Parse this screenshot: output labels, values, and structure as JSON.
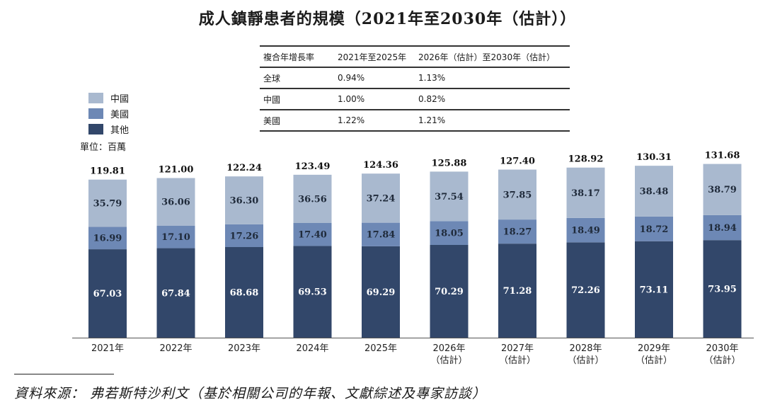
{
  "title": "成人鎮靜患者的規模（2021年至2030年（估計））",
  "cagr_table": {
    "headers": [
      "複合年增長率",
      "2021年至2025年",
      "2026年（估計）至2030年（估計）"
    ],
    "rows": [
      [
        "全球",
        "0.94%",
        "1.13%"
      ],
      [
        "中國",
        "1.00%",
        "0.82%"
      ],
      [
        "美國",
        "1.22%",
        "1.21%"
      ]
    ]
  },
  "unit_label": "單位：百萬",
  "source_text": "資料來源：  弗若斯特沙利文（基於相關公司的年報、文獻綜述及專家訪談）",
  "colors": {
    "中國": "#a9b9cf",
    "美國": "#6d88b5",
    "其他": "#32476a"
  },
  "chart_data": {
    "type": "bar",
    "stacked": true,
    "categories": [
      [
        "2021年"
      ],
      [
        "2022年"
      ],
      [
        "2023年"
      ],
      [
        "2024年"
      ],
      [
        "2025年"
      ],
      [
        "2026年",
        "（估計）"
      ],
      [
        "2027年",
        "（估計）"
      ],
      [
        "2028年",
        "（估計）"
      ],
      [
        "2029年",
        "（估計）"
      ],
      [
        "2030年",
        "（估計）"
      ]
    ],
    "series": [
      {
        "name": "其他",
        "values": [
          "67.03",
          "67.84",
          "68.68",
          "69.53",
          "69.29",
          "70.29",
          "71.28",
          "72.26",
          "73.11",
          "73.95"
        ]
      },
      {
        "name": "美國",
        "values": [
          "16.99",
          "17.10",
          "17.26",
          "17.40",
          "17.84",
          "18.05",
          "18.27",
          "18.49",
          "18.72",
          "18.94"
        ]
      },
      {
        "name": "中國",
        "values": [
          "35.79",
          "36.06",
          "36.30",
          "36.56",
          "37.24",
          "37.54",
          "37.85",
          "38.17",
          "38.48",
          "38.79"
        ]
      }
    ],
    "totals": [
      "119.81",
      "121.00",
      "122.24",
      "123.49",
      "124.36",
      "125.88",
      "127.40",
      "128.92",
      "130.31",
      "131.68"
    ],
    "legend": [
      "中國",
      "美國",
      "其他"
    ],
    "legend_position": "top-left",
    "ylabel": "",
    "ylim": [
      0,
      132
    ],
    "grid": false
  }
}
